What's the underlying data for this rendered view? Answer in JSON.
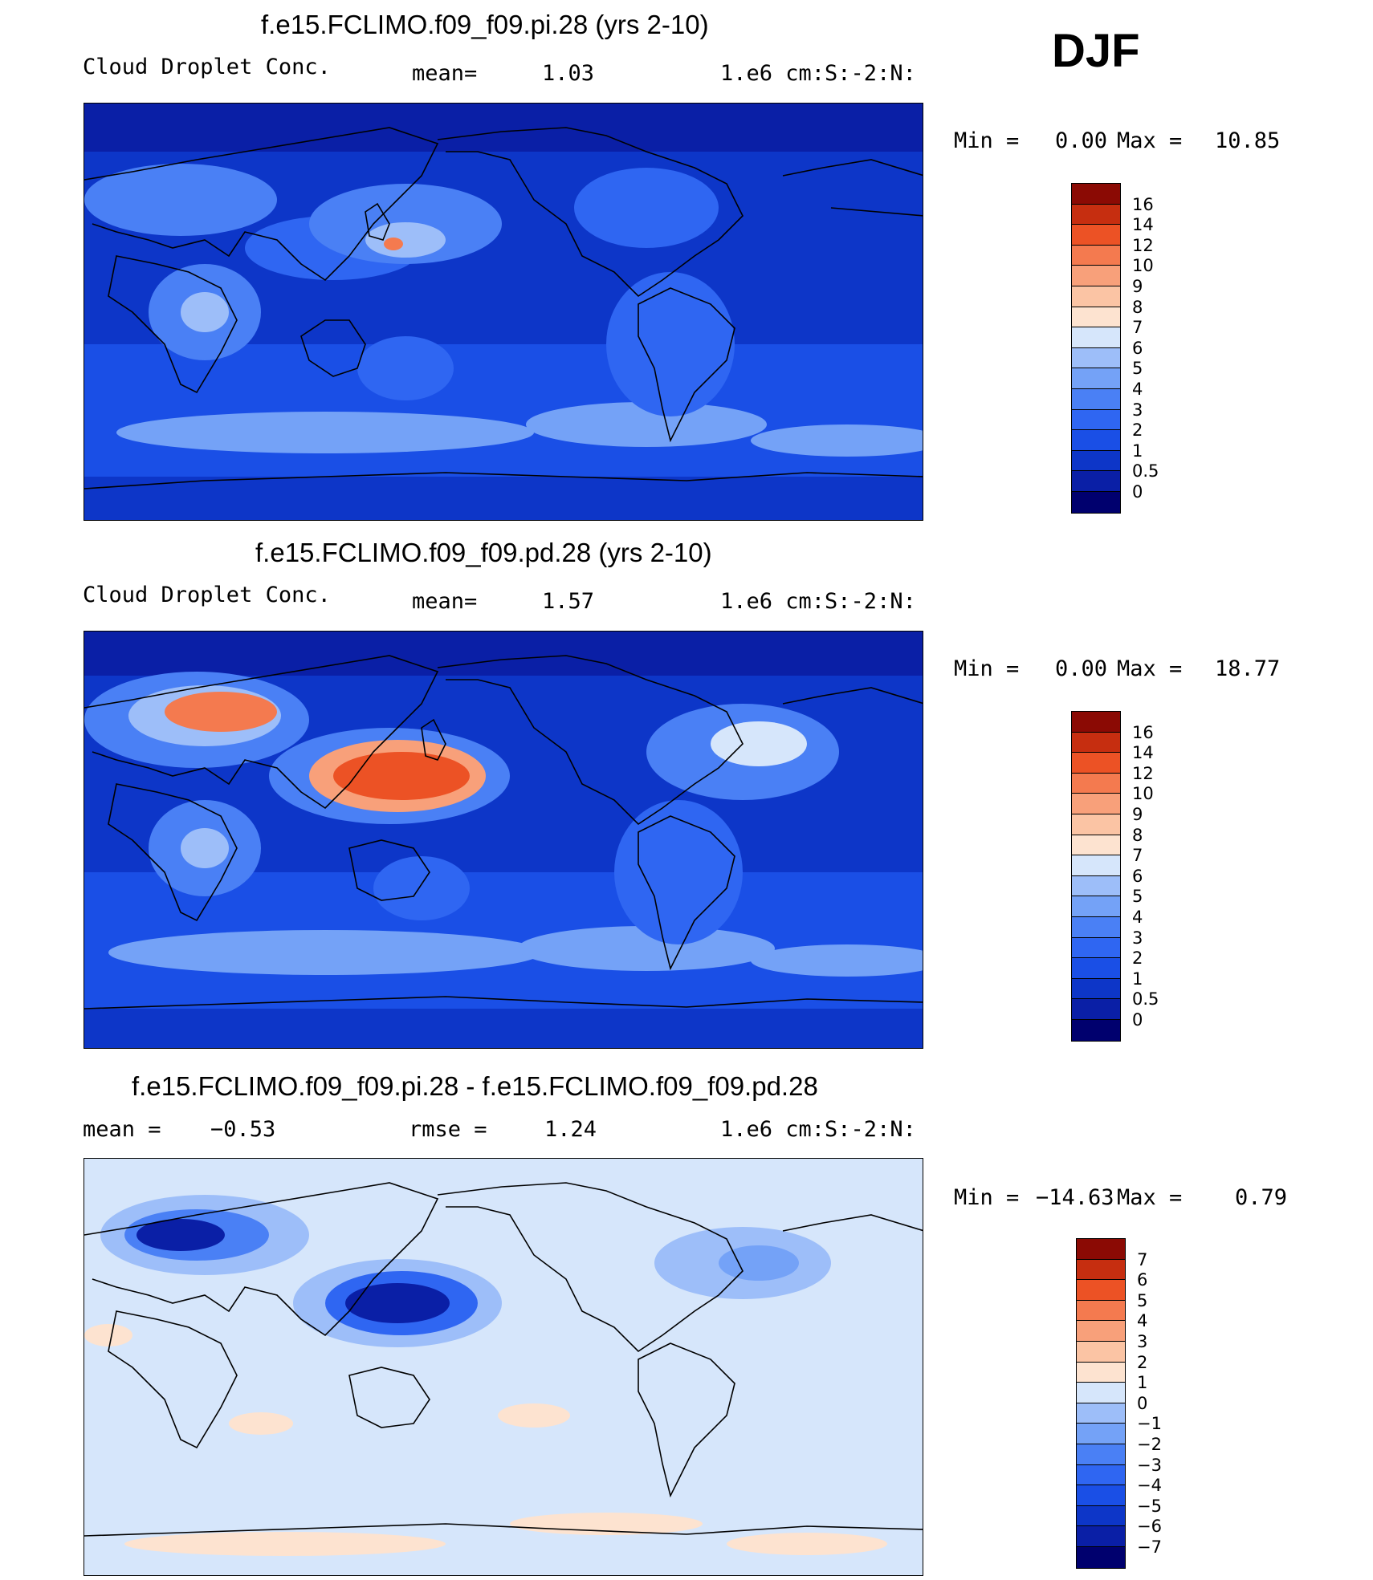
{
  "season": "DJF",
  "panels": [
    {
      "title": "f.e15.FCLIMO.f09_f09.pi.28 (yrs 2-10)",
      "left_label": "Cloud Droplet Conc.",
      "stat_label": "mean=",
      "stat_value": "1.03",
      "units": "1.e6 cm:S:-2:N:",
      "min_label": "Min =",
      "min_value": "0.00",
      "max_label": "Max =",
      "max_value": "10.85",
      "levels": [
        "0",
        "0.5",
        "1",
        "2",
        "3",
        "4",
        "5",
        "6",
        "7",
        "8",
        "9",
        "10",
        "12",
        "14",
        "16"
      ],
      "colors": [
        "#00006e",
        "#0a1fa6",
        "#0d36c8",
        "#1a4fe6",
        "#2f66f2",
        "#4a80f5",
        "#74a2f7",
        "#9dbef9",
        "#d6e6fb",
        "#fde3d0",
        "#fbc4a4",
        "#f8a07a",
        "#f47a4f",
        "#ec5225",
        "#c62e10",
        "#8b0a04"
      ]
    },
    {
      "title": "f.e15.FCLIMO.f09_f09.pd.28 (yrs 2-10)",
      "left_label": "Cloud Droplet Conc.",
      "stat_label": "mean=",
      "stat_value": "1.57",
      "units": "1.e6 cm:S:-2:N:",
      "min_label": "Min =",
      "min_value": "0.00",
      "max_label": "Max =",
      "max_value": "18.77",
      "levels": [
        "0",
        "0.5",
        "1",
        "2",
        "3",
        "4",
        "5",
        "6",
        "7",
        "8",
        "9",
        "10",
        "12",
        "14",
        "16"
      ],
      "colors": [
        "#00006e",
        "#0a1fa6",
        "#0d36c8",
        "#1a4fe6",
        "#2f66f2",
        "#4a80f5",
        "#74a2f7",
        "#9dbef9",
        "#d6e6fb",
        "#fde3d0",
        "#fbc4a4",
        "#f8a07a",
        "#f47a4f",
        "#ec5225",
        "#c62e10",
        "#8b0a04"
      ]
    },
    {
      "title": "f.e15.FCLIMO.f09_f09.pi.28 - f.e15.FCLIMO.f09_f09.pd.28",
      "left_label": "mean =",
      "left_value": "−0.53",
      "stat_label": "rmse =",
      "stat_value": "1.24",
      "units": "1.e6 cm:S:-2:N:",
      "min_label": "Min =",
      "min_value": "−14.63",
      "max_label": "Max =",
      "max_value": "0.79",
      "levels": [
        "−7",
        "−6",
        "−5",
        "−4",
        "−3",
        "−2",
        "−1",
        "0",
        "1",
        "2",
        "3",
        "4",
        "5",
        "6",
        "7"
      ],
      "colors": [
        "#00006e",
        "#0a1fa6",
        "#0d36c8",
        "#1a4fe6",
        "#2f66f2",
        "#4a80f5",
        "#74a2f7",
        "#9dbef9",
        "#d6e6fb",
        "#fde3d0",
        "#fbc4a4",
        "#f8a07a",
        "#f47a4f",
        "#ec5225",
        "#c62e10",
        "#8b0a04"
      ]
    }
  ]
}
